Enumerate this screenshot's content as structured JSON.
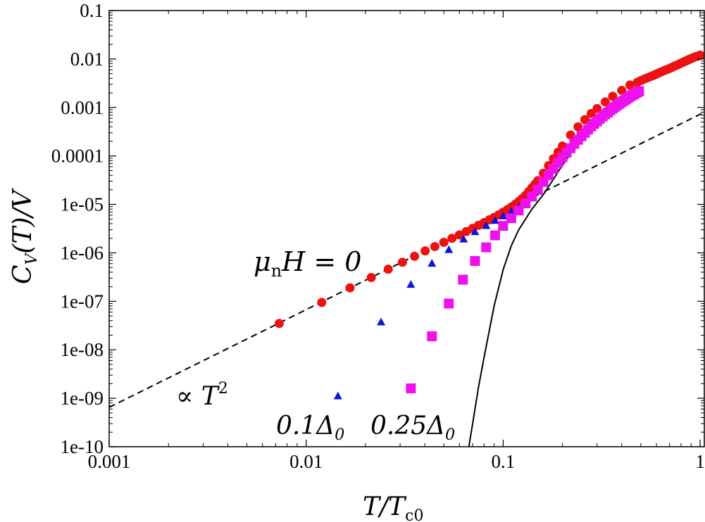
{
  "chart_data": {
    "type": "scatter",
    "xscale": "log",
    "yscale": "log",
    "xlim": [
      0.001,
      1.05
    ],
    "ylim": [
      1e-10,
      0.1
    ],
    "xlabel": "T/Tc0",
    "ylabel": "CV(T)/V",
    "xticks": [
      {
        "value": 0.001,
        "label": "0.001"
      },
      {
        "value": 0.01,
        "label": "0.01"
      },
      {
        "value": 0.1,
        "label": "0.1"
      },
      {
        "value": 1,
        "label": "1"
      }
    ],
    "yticks": [
      {
        "value": 0.1,
        "label": "0.1"
      },
      {
        "value": 0.01,
        "label": "0.01"
      },
      {
        "value": 0.001,
        "label": "0.001"
      },
      {
        "value": 0.0001,
        "label": "0.0001"
      },
      {
        "value": 1e-05,
        "label": "1e-05"
      },
      {
        "value": 1e-06,
        "label": "1e-06"
      },
      {
        "value": 1e-07,
        "label": "1e-07"
      },
      {
        "value": 1e-08,
        "label": "1e-08"
      },
      {
        "value": 1e-09,
        "label": "1e-09"
      },
      {
        "value": 1e-10,
        "label": "1e-10"
      }
    ],
    "series": [
      {
        "name": "μnH = 0",
        "marker": "circle",
        "color": "#ee1111",
        "x": [
          0.0073,
          0.012,
          0.0167,
          0.0214,
          0.0261,
          0.0308,
          0.0355,
          0.0402,
          0.045,
          0.05,
          0.055,
          0.06,
          0.065,
          0.07,
          0.075,
          0.08,
          0.085,
          0.09,
          0.095,
          0.1,
          0.105,
          0.11,
          0.115,
          0.12,
          0.125,
          0.13,
          0.135,
          0.14,
          0.145,
          0.15,
          0.16,
          0.17,
          0.18,
          0.19,
          0.2,
          0.22,
          0.24,
          0.26,
          0.28,
          0.3,
          0.33,
          0.36,
          0.4,
          0.44,
          0.48,
          0.5,
          0.52,
          0.54,
          0.56,
          0.58,
          0.6,
          0.62,
          0.64,
          0.66,
          0.68,
          0.7,
          0.72,
          0.74,
          0.76,
          0.78,
          0.8,
          0.82,
          0.84,
          0.86,
          0.88,
          0.9,
          0.92,
          0.94,
          0.96,
          0.98,
          1.0
        ],
        "y": [
          3.5e-08,
          9.5e-08,
          1.9e-07,
          3.1e-07,
          4.6e-07,
          6.4e-07,
          8.5e-07,
          1.1e-06,
          1.35e-06,
          1.65e-06,
          2e-06,
          2.35e-06,
          2.75e-06,
          3.2e-06,
          3.7e-06,
          4.2e-06,
          4.8e-06,
          5.4e-06,
          6.1e-06,
          6.9e-06,
          7.8e-06,
          8.8e-06,
          1e-05,
          1.15e-05,
          1.32e-05,
          1.55e-05,
          1.85e-05,
          2.2e-05,
          2.6e-05,
          3.1e-05,
          4.4e-05,
          6.3e-05,
          8.8e-05,
          0.00012,
          0.00016,
          0.00027,
          0.0004,
          0.00056,
          0.00075,
          0.00095,
          0.0013,
          0.0017,
          0.00225,
          0.0029,
          0.0033,
          0.0036,
          0.00385,
          0.0041,
          0.00435,
          0.0046,
          0.0049,
          0.0052,
          0.0055,
          0.0058,
          0.0061,
          0.0064,
          0.00675,
          0.0071,
          0.00745,
          0.0078,
          0.0082,
          0.0086,
          0.009,
          0.0094,
          0.0098,
          0.0102,
          0.0106,
          0.011,
          0.0113,
          0.0116,
          0.012
        ]
      },
      {
        "name": "0.1Δ0",
        "marker": "triangle",
        "color": "#1111dd",
        "x": [
          0.0145,
          0.024,
          0.034,
          0.0435,
          0.053,
          0.063,
          0.072,
          0.082,
          0.091,
          0.1,
          0.11,
          0.12,
          0.13,
          0.14,
          0.15
        ],
        "y": [
          1.1e-09,
          3.7e-08,
          2.2e-07,
          6e-07,
          1.15e-06,
          1.9e-06,
          2.7e-06,
          3.6e-06,
          4.6e-06,
          5.7e-06,
          7e-06,
          8.7e-06,
          1.1e-05,
          1.5e-05,
          2e-05
        ]
      },
      {
        "name": "0.25Δ0",
        "marker": "square",
        "color": "#ee11ee",
        "x": [
          0.034,
          0.0435,
          0.053,
          0.0625,
          0.072,
          0.082,
          0.091,
          0.1,
          0.11,
          0.12,
          0.13,
          0.14,
          0.15,
          0.16,
          0.17,
          0.18,
          0.19,
          0.2,
          0.21,
          0.22,
          0.23,
          0.24,
          0.25,
          0.26,
          0.27,
          0.28,
          0.29,
          0.3,
          0.31,
          0.32,
          0.33,
          0.34,
          0.35,
          0.36,
          0.37,
          0.38,
          0.39,
          0.4,
          0.41,
          0.42,
          0.43,
          0.44,
          0.45,
          0.46,
          0.47,
          0.48,
          0.49
        ],
        "y": [
          1.6e-09,
          1.9e-08,
          9e-08,
          2.8e-07,
          6.8e-07,
          1.3e-06,
          2.3e-06,
          3.6e-06,
          5.2e-06,
          7.5e-06,
          1.05e-05,
          1.45e-05,
          2e-05,
          2.9e-05,
          4e-05,
          5.4e-05,
          7.2e-05,
          9.3e-05,
          0.000117,
          0.000145,
          0.000178,
          0.000215,
          0.000255,
          0.0003,
          0.00035,
          0.000405,
          0.00046,
          0.00052,
          0.000585,
          0.00065,
          0.00072,
          0.00079,
          0.00087,
          0.00095,
          0.00103,
          0.00111,
          0.0012,
          0.00129,
          0.00138,
          0.00147,
          0.00157,
          0.00167,
          0.00177,
          0.00187,
          0.00197,
          0.00207,
          0.00217
        ]
      }
    ],
    "lines": [
      {
        "name": "T^2 asymptote",
        "style": "dashed",
        "color": "#000000",
        "x": [
          0.001,
          1.05
        ],
        "y": [
          6.5e-10,
          0.0008
        ]
      },
      {
        "name": "fully gapped curve",
        "style": "solid",
        "color": "#000000",
        "x": [
          0.067,
          0.07,
          0.075,
          0.08,
          0.09,
          0.1,
          0.11,
          0.12,
          0.14,
          0.16,
          0.18,
          0.2,
          0.22,
          0.24
        ],
        "y": [
          1e-10,
          3e-10,
          1.7e-09,
          7e-09,
          8e-08,
          4.5e-07,
          1.4e-06,
          3e-06,
          8e-06,
          1.6e-05,
          3.3e-05,
          6.5e-05,
          0.00011,
          0.00018
        ]
      }
    ],
    "annotations": {
      "mu": "μ",
      "mu_sub": "n",
      "mu_rest": "H = 0",
      "propto": "∝ T",
      "propto_sup": "2",
      "label_01": "0.1Δ",
      "label_01_sub": "0",
      "label_025": "0.25Δ",
      "label_025_sub": "0",
      "xlabel_main": "T/T",
      "xlabel_sub": "c0",
      "ylabel_c": "C",
      "ylabel_sub": "V",
      "ylabel_rest": "(T)/V"
    }
  }
}
